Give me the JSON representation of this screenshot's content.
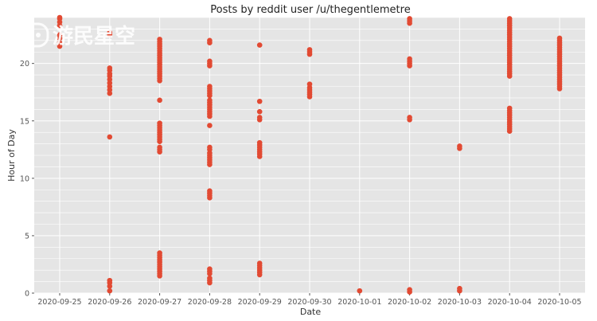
{
  "watermark": {
    "text": "游民星空"
  },
  "chart_data": {
    "type": "scatter",
    "title": "Posts by reddit user /u/thegentlemetre",
    "xlabel": "Date",
    "ylabel": "Hour of Day",
    "ylim": [
      0,
      24
    ],
    "yticks": [
      0,
      5,
      10,
      15,
      20
    ],
    "grid": true,
    "marker_color": "#e24a33",
    "background_color": "#e5e5e5",
    "categories": [
      "2020-09-25",
      "2020-09-26",
      "2020-09-27",
      "2020-09-28",
      "2020-09-29",
      "2020-09-30",
      "2020-10-01",
      "2020-10-02",
      "2020-10-03",
      "2020-10-04",
      "2020-10-05"
    ],
    "series": [
      {
        "date": "2020-09-25",
        "hours": [
          21.5,
          21.8,
          22.2,
          22.5,
          23.3,
          23.6,
          23.9,
          24.0
        ]
      },
      {
        "date": "2020-09-26",
        "hours": [
          0.2,
          0.6,
          0.9,
          1.1,
          13.6,
          17.4,
          17.7,
          18.0,
          18.3,
          18.6,
          18.9,
          19.1,
          19.4,
          19.6,
          22.5,
          22.7
        ]
      },
      {
        "date": "2020-09-27",
        "hours": [
          1.5,
          1.7,
          1.9,
          2.1,
          2.3,
          2.5,
          2.7,
          2.9,
          3.1,
          3.3,
          3.5,
          12.3,
          12.5,
          12.7,
          13.2,
          13.4,
          13.6,
          13.8,
          14.0,
          14.2,
          14.4,
          14.6,
          14.8,
          16.8,
          18.5,
          18.7,
          18.9,
          19.1,
          19.3,
          19.5,
          19.7,
          19.9,
          20.1,
          20.3,
          20.5,
          20.7,
          20.9,
          21.1,
          21.3,
          21.5,
          21.7,
          21.9,
          22.1
        ]
      },
      {
        "date": "2020-09-28",
        "hours": [
          0.9,
          1.1,
          1.3,
          1.7,
          1.9,
          2.1,
          8.3,
          8.5,
          8.7,
          8.9,
          11.2,
          11.4,
          11.6,
          11.8,
          12.0,
          12.2,
          12.5,
          12.7,
          14.6,
          15.4,
          15.6,
          15.8,
          16.0,
          16.2,
          16.4,
          16.6,
          16.8,
          17.2,
          17.4,
          17.6,
          17.8,
          18.0,
          19.8,
          20.0,
          20.2,
          21.8,
          22.0
        ]
      },
      {
        "date": "2020-09-29",
        "hours": [
          1.6,
          1.8,
          2.0,
          2.2,
          2.4,
          2.6,
          11.9,
          12.1,
          12.3,
          12.5,
          12.7,
          12.9,
          13.1,
          15.1,
          15.3,
          15.8,
          16.7,
          21.6
        ]
      },
      {
        "date": "2020-09-30",
        "hours": [
          17.1,
          17.3,
          17.5,
          17.7,
          17.9,
          18.2,
          20.8,
          21.0,
          21.2
        ]
      },
      {
        "date": "2020-10-01",
        "hours": [
          0.2
        ]
      },
      {
        "date": "2020-10-02",
        "hours": [
          0.1,
          0.3,
          15.1,
          15.3,
          19.8,
          20.0,
          20.2,
          20.4,
          23.5,
          23.7,
          23.9
        ]
      },
      {
        "date": "2020-10-03",
        "hours": [
          0.2,
          0.4,
          12.6,
          12.8
        ]
      },
      {
        "date": "2020-10-04",
        "hours": [
          14.1,
          14.3,
          14.5,
          14.7,
          14.9,
          15.1,
          15.3,
          15.5,
          15.7,
          15.9,
          16.1,
          18.9,
          19.1,
          19.3,
          19.5,
          19.7,
          19.9,
          20.1,
          20.3,
          20.5,
          20.7,
          20.9,
          21.1,
          21.3,
          21.5,
          21.7,
          21.9,
          22.1,
          22.3,
          22.5,
          22.7,
          22.9,
          23.1,
          23.3,
          23.5,
          23.7,
          23.9
        ]
      },
      {
        "date": "2020-10-05",
        "hours": [
          17.8,
          18.0,
          18.2,
          18.4,
          18.6,
          18.8,
          19.0,
          19.2,
          19.4,
          19.6,
          19.8,
          20.0,
          20.2,
          20.4,
          20.6,
          20.8,
          21.0,
          21.2,
          21.4,
          21.6,
          21.8,
          22.0,
          22.2
        ]
      }
    ]
  }
}
